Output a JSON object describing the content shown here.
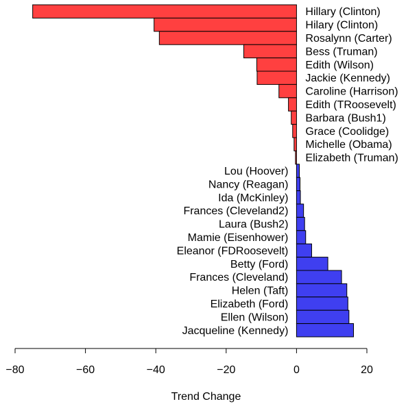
{
  "chart_data": {
    "type": "bar",
    "orientation": "horizontal",
    "xlabel": "Trend Change",
    "xlim": [
      -80,
      20
    ],
    "xticks": [
      -80,
      -60,
      -40,
      -20,
      0,
      20
    ],
    "xtick_labels": [
      "−80",
      "−60",
      "−40",
      "−20",
      "0",
      "20"
    ],
    "grid": false,
    "colors": {
      "negative": "#ff4040",
      "positive": "#3f3ff0",
      "edge": "#000000"
    },
    "categories": [
      "Hillary (Clinton)",
      "Hilary (Clinton)",
      "Rosalynn (Carter)",
      "Bess (Truman)",
      "Edith (Wilson)",
      "Jackie (Kennedy)",
      "Caroline (Harrison)",
      "Edith (TRoosevelt)",
      "Barbara (Bush1)",
      "Grace (Coolidge)",
      "Michelle (Obama)",
      "Elizabeth (Truman)",
      "Lou (Hoover)",
      "Nancy (Reagan)",
      "Ida (McKinley)",
      "Frances (Cleveland2)",
      "Laura (Bush2)",
      "Mamie (Eisenhower)",
      "Eleanor (FDRoosevelt)",
      "Betty (Ford)",
      "Frances (Cleveland)",
      "Helen (Taft)",
      "Elizabeth (Ford)",
      "Ellen (Wilson)",
      "Jacqueline (Kennedy)"
    ],
    "values": [
      -75.0,
      -40.5,
      -39.0,
      -15.0,
      -11.3,
      -11.2,
      -5.0,
      -2.3,
      -1.5,
      -1.1,
      -0.7,
      -0.3,
      0.8,
      1.0,
      1.1,
      2.0,
      2.3,
      2.6,
      4.3,
      8.9,
      12.8,
      14.3,
      14.6,
      14.9,
      16.2
    ]
  }
}
